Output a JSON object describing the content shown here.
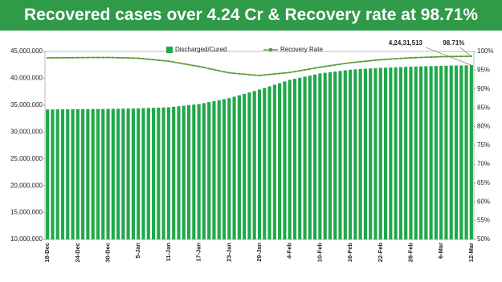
{
  "chart_data": {
    "type": "bar-line",
    "title": "Recovered cases over 4.24 Cr & Recovery rate at 98.71%",
    "categories": [
      "18-Dec",
      null,
      null,
      null,
      null,
      null,
      "24-Dec",
      null,
      null,
      null,
      null,
      null,
      "30-Dec",
      null,
      null,
      null,
      null,
      null,
      "5-Jan",
      null,
      null,
      null,
      null,
      null,
      "11-Jan",
      null,
      null,
      null,
      null,
      null,
      "17-Jan",
      null,
      null,
      null,
      null,
      null,
      "23-Jan",
      null,
      null,
      null,
      null,
      null,
      "29-Jan",
      null,
      null,
      null,
      null,
      null,
      "4-Feb",
      null,
      null,
      null,
      null,
      null,
      "10-Feb",
      null,
      null,
      null,
      null,
      null,
      "16-Feb",
      null,
      null,
      null,
      null,
      null,
      "22-Feb",
      null,
      null,
      null,
      null,
      null,
      "28-Feb",
      null,
      null,
      null,
      null,
      null,
      "6-Mar",
      null,
      null,
      null,
      null,
      null,
      "12-Mar"
    ],
    "series": [
      {
        "name": "Discharged/Cured",
        "type": "bar",
        "color": "#21a84a",
        "values": [
          34200000,
          34210000,
          34220000,
          34220000,
          34230000,
          34240000,
          34250000,
          34260000,
          34270000,
          34280000,
          34280000,
          34290000,
          34300000,
          34320000,
          34330000,
          34350000,
          34370000,
          34380000,
          34400000,
          34430000,
          34470000,
          34500000,
          34530000,
          34570000,
          34600000,
          34700000,
          34800000,
          34900000,
          35000000,
          35100000,
          35200000,
          35380000,
          35570000,
          35750000,
          35930000,
          36120000,
          36300000,
          36570000,
          36830000,
          37100000,
          37370000,
          37630000,
          37900000,
          38200000,
          38500000,
          38800000,
          39100000,
          39400000,
          39700000,
          39900000,
          40100000,
          40300000,
          40500000,
          40700000,
          40900000,
          41020000,
          41130000,
          41250000,
          41370000,
          41480000,
          41600000,
          41660000,
          41720000,
          41780000,
          41830000,
          41890000,
          41950000,
          41980000,
          42020000,
          42050000,
          42080000,
          42120000,
          42150000,
          42180000,
          42210000,
          42240000,
          42260000,
          42290000,
          42320000,
          42340000,
          42360000,
          42380000,
          42390000,
          42410000,
          42431513
        ],
        "value_labels": [
          null,
          null,
          null,
          null,
          null,
          null,
          null,
          null,
          null,
          null,
          null,
          null,
          null,
          null,
          null,
          null,
          null,
          null,
          null,
          null,
          null,
          null,
          null,
          null,
          null,
          null,
          null,
          null,
          null,
          null,
          null,
          null,
          null,
          null,
          null,
          null,
          null,
          null,
          null,
          null,
          null,
          null,
          null,
          null,
          null,
          null,
          null,
          null,
          null,
          null,
          null,
          null,
          null,
          null,
          null,
          null,
          null,
          null,
          null,
          null,
          null,
          null,
          null,
          null,
          null,
          null,
          null,
          null,
          null,
          null,
          null,
          null,
          null,
          null,
          null,
          null,
          null,
          null,
          null,
          null,
          null,
          null,
          null,
          null,
          "4,24,31,513"
        ]
      },
      {
        "name": "Recovery Rate",
        "type": "line",
        "axis": "y2",
        "color": "#5e9e3c",
        "values": [
          98.3,
          98.31,
          98.32,
          98.32,
          98.33,
          98.34,
          98.35,
          98.36,
          98.37,
          98.38,
          98.38,
          98.39,
          98.4,
          98.37,
          98.33,
          98.3,
          98.27,
          98.23,
          98.2,
          98.07,
          97.93,
          97.8,
          97.67,
          97.53,
          97.4,
          97.17,
          96.93,
          96.7,
          96.47,
          96.23,
          96.0,
          95.72,
          95.43,
          95.15,
          94.87,
          94.58,
          94.3,
          94.18,
          94.07,
          93.95,
          93.83,
          93.72,
          93.6,
          93.73,
          93.87,
          94.0,
          94.13,
          94.27,
          94.4,
          94.63,
          94.87,
          95.1,
          95.33,
          95.57,
          95.8,
          96.0,
          96.2,
          96.4,
          96.6,
          96.8,
          97.0,
          97.13,
          97.27,
          97.4,
          97.53,
          97.67,
          97.8,
          97.88,
          97.97,
          98.05,
          98.13,
          98.22,
          98.3,
          98.35,
          98.4,
          98.45,
          98.5,
          98.55,
          98.6,
          98.62,
          98.64,
          98.66,
          98.67,
          98.69,
          98.71
        ],
        "value_labels": [
          null,
          null,
          null,
          null,
          null,
          null,
          null,
          null,
          null,
          null,
          null,
          null,
          null,
          null,
          null,
          null,
          null,
          null,
          null,
          null,
          null,
          null,
          null,
          null,
          null,
          null,
          null,
          null,
          null,
          null,
          null,
          null,
          null,
          null,
          null,
          null,
          null,
          null,
          null,
          null,
          null,
          null,
          null,
          null,
          null,
          null,
          null,
          null,
          null,
          null,
          null,
          null,
          null,
          null,
          null,
          null,
          null,
          null,
          null,
          null,
          null,
          null,
          null,
          null,
          null,
          null,
          null,
          null,
          null,
          null,
          null,
          null,
          null,
          null,
          null,
          null,
          null,
          null,
          null,
          null,
          null,
          null,
          null,
          null,
          "98.71%"
        ]
      }
    ],
    "ylim": [
      10000000,
      45000000
    ],
    "yticks": [
      {
        "value": 10000000,
        "label": "10,000,000"
      },
      {
        "value": 15000000,
        "label": "15,000,000"
      },
      {
        "value": 20000000,
        "label": "20,000,000"
      },
      {
        "value": 25000000,
        "label": "25,000,000"
      },
      {
        "value": 30000000,
        "label": "30,000,000"
      },
      {
        "value": 35000000,
        "label": "35,000,000"
      },
      {
        "value": 40000000,
        "label": "40,000,000"
      },
      {
        "value": 45000000,
        "label": "45,000,000"
      }
    ],
    "y2lim": [
      50,
      100
    ],
    "y2ticks": [
      {
        "value": 50,
        "label": "50%"
      },
      {
        "value": 55,
        "label": "55%"
      },
      {
        "value": 60,
        "label": "60%"
      },
      {
        "value": 65,
        "label": "65%"
      },
      {
        "value": 70,
        "label": "70%"
      },
      {
        "value": 75,
        "label": "75%"
      },
      {
        "value": 80,
        "label": "80%"
      },
      {
        "value": 85,
        "label": "85%"
      },
      {
        "value": 90,
        "label": "90%"
      },
      {
        "value": 95,
        "label": "95%"
      },
      {
        "value": 100,
        "label": "100%"
      }
    ]
  }
}
